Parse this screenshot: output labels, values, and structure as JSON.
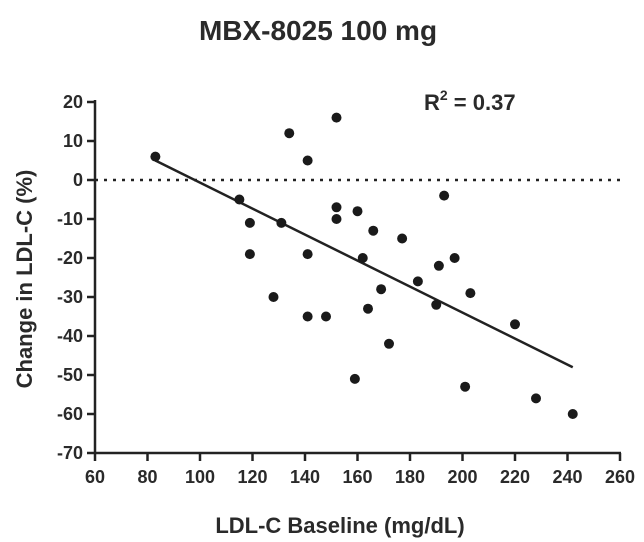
{
  "chart_data": {
    "type": "scatter",
    "title": "MBX-8025 100 mg",
    "xlabel": "LDL-C Baseline (mg/dL)",
    "ylabel": "Change in LDL-C (%)",
    "xlim": [
      60,
      260
    ],
    "ylim": [
      -70,
      20
    ],
    "xticks": [
      60,
      80,
      100,
      120,
      140,
      160,
      180,
      200,
      220,
      240,
      260
    ],
    "yticks": [
      20,
      10,
      0,
      -10,
      -20,
      -30,
      -40,
      -50,
      -60,
      -70
    ],
    "annotation": {
      "prefix": "R",
      "superscript": "2",
      "suffix": " = 0.37"
    },
    "reference_line": {
      "y": 0,
      "style": "dotted"
    },
    "fit_line": {
      "x": [
        83,
        242
      ],
      "y": [
        5,
        -48
      ]
    },
    "points": [
      {
        "x": 83,
        "y": 6
      },
      {
        "x": 115,
        "y": -5
      },
      {
        "x": 119,
        "y": -11
      },
      {
        "x": 119,
        "y": -19
      },
      {
        "x": 128,
        "y": -30
      },
      {
        "x": 131,
        "y": -11
      },
      {
        "x": 134,
        "y": 12
      },
      {
        "x": 141,
        "y": 5
      },
      {
        "x": 141,
        "y": -19
      },
      {
        "x": 141,
        "y": -35
      },
      {
        "x": 148,
        "y": -35
      },
      {
        "x": 152,
        "y": 16
      },
      {
        "x": 152,
        "y": -7
      },
      {
        "x": 152,
        "y": -10
      },
      {
        "x": 159,
        "y": -51
      },
      {
        "x": 160,
        "y": -8
      },
      {
        "x": 162,
        "y": -20
      },
      {
        "x": 164,
        "y": -33
      },
      {
        "x": 166,
        "y": -13
      },
      {
        "x": 169,
        "y": -28
      },
      {
        "x": 172,
        "y": -42
      },
      {
        "x": 177,
        "y": -15
      },
      {
        "x": 183,
        "y": -26
      },
      {
        "x": 190,
        "y": -32
      },
      {
        "x": 191,
        "y": -22
      },
      {
        "x": 193,
        "y": -4
      },
      {
        "x": 197,
        "y": -20
      },
      {
        "x": 201,
        "y": -53
      },
      {
        "x": 203,
        "y": -29
      },
      {
        "x": 220,
        "y": -37
      },
      {
        "x": 228,
        "y": -56
      },
      {
        "x": 242,
        "y": -60
      }
    ]
  }
}
